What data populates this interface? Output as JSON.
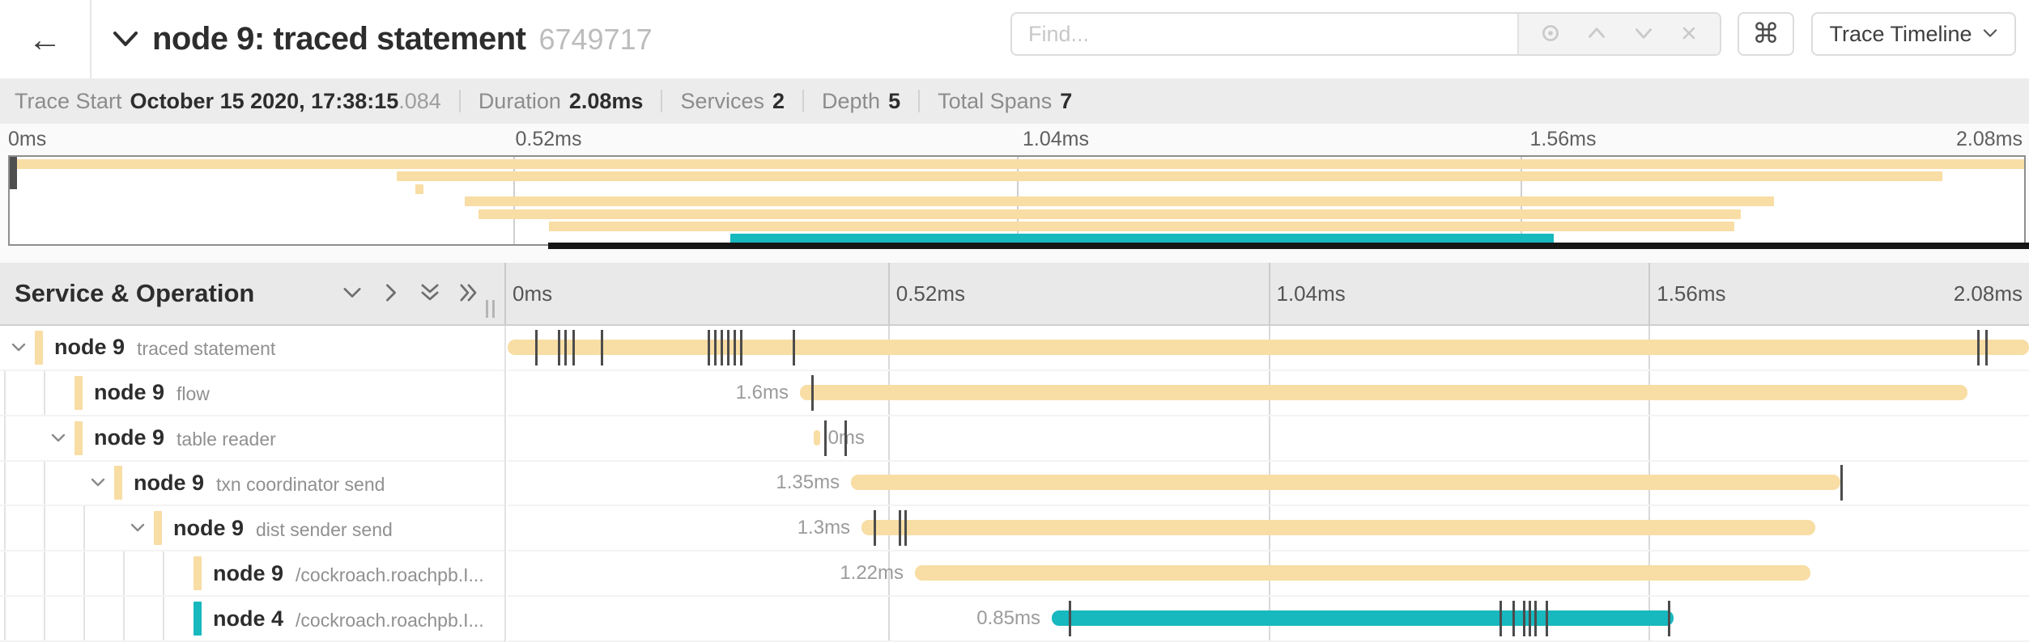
{
  "colors": {
    "tan": "#F8DDA4",
    "teal": "#17B8BE",
    "log_tick": "#4c4c4c"
  },
  "header": {
    "back_icon": "←",
    "title": "node 9: traced statement",
    "trace_id": "6749717",
    "find_placeholder": "Find...",
    "keyboard_shortcut_label": "⌘",
    "view_select_label": "Trace Timeline"
  },
  "summary": {
    "items": [
      {
        "label": "Trace Start",
        "value": "October 15 2020, 17:38:15",
        "suffix": ".084"
      },
      {
        "label": "Duration",
        "value": "2.08ms",
        "suffix": ""
      },
      {
        "label": "Services",
        "value": "2",
        "suffix": ""
      },
      {
        "label": "Depth",
        "value": "5",
        "suffix": ""
      },
      {
        "label": "Total Spans",
        "value": "7",
        "suffix": ""
      }
    ]
  },
  "chart_data": {
    "type": "gantt-timeline",
    "title": "node 9: traced statement",
    "left_header": "Service & Operation",
    "time_unit": "ms",
    "total_duration_ms": 2.08,
    "axis_ticks": [
      "0ms",
      "0.52ms",
      "1.04ms",
      "1.56ms",
      "2.08ms"
    ],
    "axis_range": [
      0,
      2.08
    ],
    "grid": true,
    "spans": [
      {
        "service": "node 9",
        "operation": "traced statement",
        "level": 0,
        "expandable": true,
        "color": "tan",
        "start_frac": 0.0,
        "end_frac": 1.0,
        "duration_label": "",
        "label_side": "none",
        "log_ticks": [
          0.0181,
          0.033,
          0.0373,
          0.0426,
          0.0612,
          0.1315,
          0.1357,
          0.14,
          0.1442,
          0.1485,
          0.1527,
          0.1873,
          0.9659,
          0.9713
        ]
      },
      {
        "service": "node 9",
        "operation": "flow",
        "level": 1,
        "expandable": false,
        "color": "tan",
        "start_frac": 0.1921,
        "end_frac": 0.9595,
        "duration_label": "1.6ms",
        "label_side": "left",
        "log_ticks": [
          0.1996
        ]
      },
      {
        "service": "node 9",
        "operation": "table reader",
        "level": 1,
        "expandable": true,
        "color": "tan",
        "start_frac": 0.2012,
        "end_frac": 0.2052,
        "duration_label": "0ms",
        "label_side": "right",
        "log_ticks": [
          0.2081,
          0.2214
        ]
      },
      {
        "service": "node 9",
        "operation": "txn coordinator send",
        "level": 2,
        "expandable": true,
        "color": "tan",
        "start_frac": 0.2257,
        "end_frac": 0.876,
        "duration_label": "1.35ms",
        "label_side": "left",
        "log_ticks": [
          0.876
        ]
      },
      {
        "service": "node 9",
        "operation": "dist sender send",
        "level": 3,
        "expandable": true,
        "color": "tan",
        "start_frac": 0.2326,
        "end_frac": 0.8595,
        "duration_label": "1.3ms",
        "label_side": "left",
        "log_ticks": [
          0.2406,
          0.2571,
          0.2608
        ]
      },
      {
        "service": "node 9",
        "operation": "/cockroach.roachpb.I...",
        "level": 4,
        "expandable": false,
        "color": "tan",
        "start_frac": 0.2677,
        "end_frac": 0.8563,
        "duration_label": "1.22ms",
        "label_side": "left",
        "log_ticks": []
      },
      {
        "service": "node 4",
        "operation": "/cockroach.roachpb.I...",
        "level": 4,
        "expandable": false,
        "color": "teal",
        "start_frac": 0.3576,
        "end_frac": 0.7664,
        "duration_label": "0.85ms",
        "label_side": "left",
        "log_ticks": [
          0.3688,
          0.6519,
          0.6604,
          0.6674,
          0.6711,
          0.6748,
          0.6823,
          0.7626
        ]
      }
    ]
  }
}
